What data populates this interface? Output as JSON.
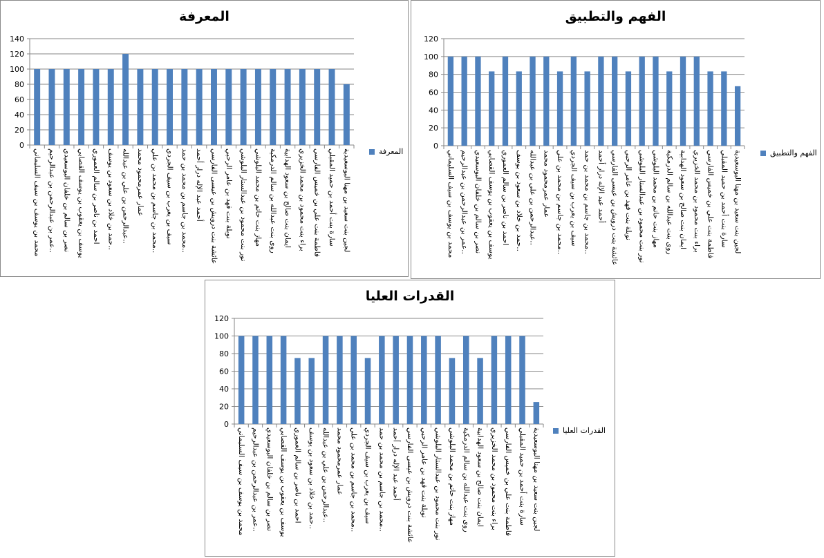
{
  "colors": {
    "bar": "#4f81bd",
    "grid": "#868686"
  },
  "chart_data": [
    {
      "type": "bar",
      "title": "المعرفة",
      "legend": "المعرفة",
      "legend_position": "right",
      "ylim": [
        0,
        140
      ],
      "yticks": [
        0,
        20,
        40,
        60,
        80,
        100,
        120,
        140
      ],
      "grid": true,
      "values": [
        100,
        100,
        100,
        100,
        100,
        100,
        120,
        100,
        100,
        100,
        100,
        100,
        100,
        100,
        100,
        100,
        100,
        100,
        100,
        100,
        100,
        80
      ]
    },
    {
      "type": "bar",
      "title": "الفهم والتطبيق",
      "legend": "الفهم والتطبيق",
      "legend_position": "right",
      "ylim": [
        0,
        120
      ],
      "yticks": [
        0,
        20,
        40,
        60,
        80,
        100,
        120
      ],
      "grid": true,
      "values": [
        100,
        100,
        100,
        83.3,
        100,
        83.3,
        100,
        100,
        83.3,
        100,
        83.3,
        100,
        100,
        83.3,
        100,
        100,
        83.3,
        100,
        100,
        83.3,
        83.3,
        66.7
      ]
    },
    {
      "type": "bar",
      "title": "القدرات العليا",
      "legend": "القدرات العليا",
      "legend_position": "right",
      "ylim": [
        0,
        120
      ],
      "yticks": [
        0,
        20,
        40,
        60,
        80,
        100,
        120
      ],
      "grid": true,
      "values": [
        100,
        100,
        100,
        100,
        75,
        75,
        100,
        100,
        100,
        75,
        100,
        100,
        100,
        100,
        100,
        75,
        100,
        75,
        100,
        100,
        100,
        25
      ]
    }
  ],
  "categories": [
    "محمد بن يوسف بن سيف  السليماني",
    "عمر بن عبدالرحمن بن عبدالرحيم..",
    "نصر بن سالم بن خلفان البوسعيدي",
    "يوسف بن يعقوب بن يوسف القصابي",
    "احمد بن ناصر بن سالم العموري",
    "حمد بن خلاد بن سعود بن يوسف..",
    "عبدالرحمن بن علي بن عبدالله..",
    "عمار عمرمحمود محمد",
    "محمد بن جاسم بن محمد بن علي..",
    "سيف بن يعرب بن سيف الجردي",
    "محمد بن جاسم بن محمد بن حمد..",
    "أحمد عبد الإله درار أحمد",
    "عائشة بنت درويش بن عيسى الفارسي",
    "نوبلة بنت فهد بن عامر الرحبي",
    "نور بنت محمود بن عبدالستار البلوشي",
    "مهاز بنت حاتم بن محمد البلوشي",
    "روى بنت عبدالله بن سالم الدرمكية",
    "ايمان بنت صالح بن سعود الهدابية",
    "براء بنت محمود بن محمد الخزيري",
    "فاطمة بنت علي بن خميس الفارسي",
    "سارة بنت أحمد بن حميد المقبلي",
    "لجين بنت سعيد بن مهنا البوسعيدية"
  ]
}
